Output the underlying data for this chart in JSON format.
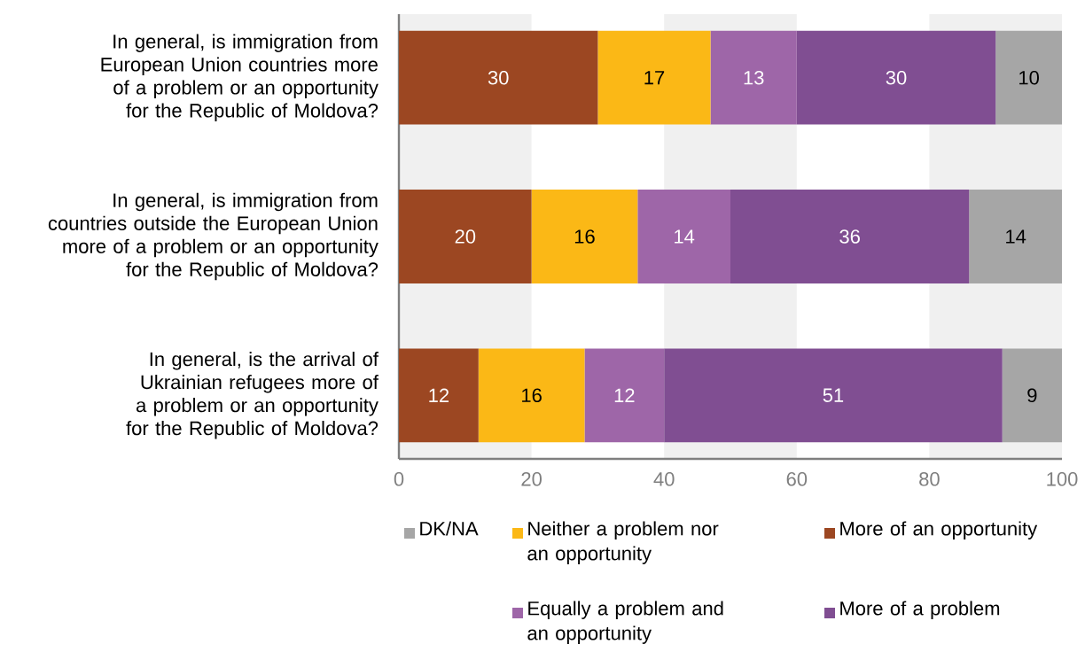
{
  "chart_data": {
    "type": "bar",
    "orientation": "horizontal",
    "stacked": true,
    "data_labels": true,
    "legend": "bottom",
    "categories": [
      "In general, is immigration from European Union countries more of a problem or an opportunity for the Republic of Moldova?",
      "In general, is immigration from countries outside the European Union more of a problem or an opportunity for the Republic of Moldova?",
      "In general, is the arrival of Ukrainian refugees more of a problem or an opportunity for the Republic of Moldova?"
    ],
    "series": [
      {
        "name": "More of an opportunity",
        "color": "#9c4722",
        "values": [
          30,
          20,
          12
        ]
      },
      {
        "name": "Neither a problem nor an opportunity",
        "color": "#fbb816",
        "values": [
          17,
          16,
          16
        ]
      },
      {
        "name": "Equally a problem and an opportunity",
        "color": "#9e66a8",
        "values": [
          13,
          14,
          12
        ]
      },
      {
        "name": "More of a problem",
        "color": "#804e92",
        "values": [
          30,
          36,
          51
        ]
      },
      {
        "name": "DK/NA",
        "color": "#a6a6a6",
        "values": [
          10,
          14,
          9
        ]
      }
    ],
    "xlim": [
      0,
      100
    ],
    "xticks": [
      0,
      20,
      40,
      60,
      80,
      100
    ],
    "bands": [
      {
        "axis": "x",
        "from": 0,
        "to": 20,
        "color": "#f0f0f0"
      },
      {
        "axis": "x",
        "from": 40,
        "to": 60,
        "color": "#f0f0f0"
      },
      {
        "axis": "x",
        "from": 80,
        "to": 100,
        "color": "#f0f0f0"
      }
    ]
  }
}
